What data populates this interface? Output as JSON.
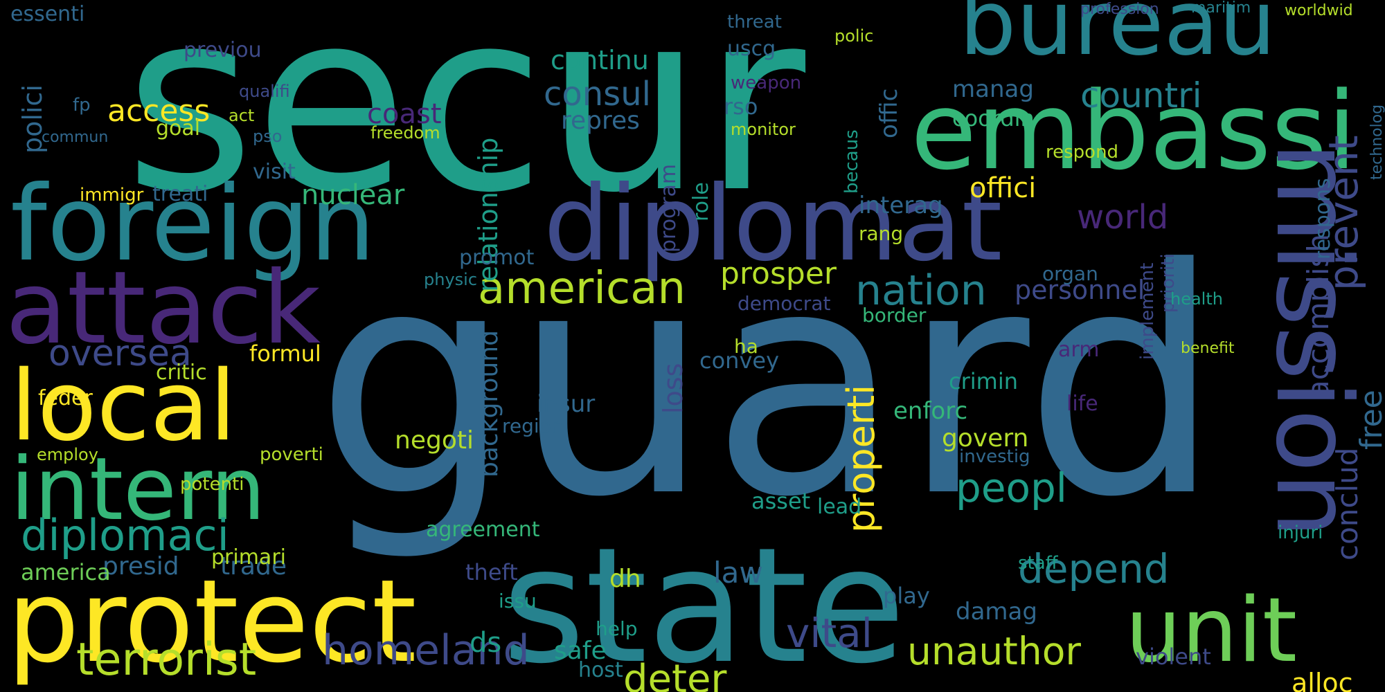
{
  "cloud": {
    "background": "#000000",
    "palette": {
      "purple": "#482878",
      "indigo": "#3e4a89",
      "blue": "#31688e",
      "teal": "#26828e",
      "green": "#1f9e89",
      "mint": "#35b779",
      "lime": "#6ece58",
      "yellowgreen": "#b5de2b",
      "yellow": "#fde725"
    },
    "words": [
      {
        "text": "secur",
        "color": "green"
      },
      {
        "text": "guard",
        "color": "blue"
      },
      {
        "text": "state",
        "color": "teal"
      },
      {
        "text": "bureau",
        "color": "teal"
      },
      {
        "text": "embassi",
        "color": "mint"
      },
      {
        "text": "foreign",
        "color": "teal"
      },
      {
        "text": "diplomat",
        "color": "indigo"
      },
      {
        "text": "mission",
        "color": "indigo"
      },
      {
        "text": "attack",
        "color": "purple"
      },
      {
        "text": "protect",
        "color": "yellow"
      },
      {
        "text": "intern",
        "color": "mint"
      },
      {
        "text": "local",
        "color": "yellow"
      },
      {
        "text": "unit",
        "color": "lime"
      },
      {
        "text": "diplomaci",
        "color": "green"
      },
      {
        "text": "terrorist",
        "color": "yellowgreen"
      },
      {
        "text": "american",
        "color": "yellowgreen"
      },
      {
        "text": "nation",
        "color": "teal"
      },
      {
        "text": "depend",
        "color": "teal"
      },
      {
        "text": "peopl",
        "color": "green"
      },
      {
        "text": "homeland",
        "color": "indigo"
      },
      {
        "text": "vital",
        "color": "indigo"
      },
      {
        "text": "unauthor",
        "color": "yellowgreen"
      },
      {
        "text": "countri",
        "color": "teal"
      },
      {
        "text": "consul",
        "color": "blue"
      },
      {
        "text": "world",
        "color": "purple"
      },
      {
        "text": "oversea",
        "color": "indigo"
      },
      {
        "text": "prosper",
        "color": "yellowgreen"
      },
      {
        "text": "deter",
        "color": "yellowgreen"
      },
      {
        "text": "properti",
        "color": "yellow"
      },
      {
        "text": "prevent",
        "color": "indigo"
      },
      {
        "text": "accomplish",
        "color": "indigo"
      },
      {
        "text": "conclud",
        "color": "indigo"
      },
      {
        "text": "free",
        "color": "blue"
      },
      {
        "text": "access",
        "color": "yellow"
      },
      {
        "text": "nuclear",
        "color": "mint"
      },
      {
        "text": "offici",
        "color": "yellow"
      },
      {
        "text": "coast",
        "color": "purple"
      },
      {
        "text": "repres",
        "color": "blue"
      },
      {
        "text": "continu",
        "color": "green"
      },
      {
        "text": "manag",
        "color": "blue"
      },
      {
        "text": "polici",
        "color": "blue"
      },
      {
        "text": "presid",
        "color": "blue"
      },
      {
        "text": "trade",
        "color": "blue"
      },
      {
        "text": "america",
        "color": "lime"
      },
      {
        "text": "relationship",
        "color": "green"
      },
      {
        "text": "background",
        "color": "blue"
      },
      {
        "text": "personnel",
        "color": "indigo"
      },
      {
        "text": "interag",
        "color": "blue"
      },
      {
        "text": "loss",
        "color": "indigo"
      },
      {
        "text": "negoti",
        "color": "yellowgreen"
      },
      {
        "text": "insur",
        "color": "blue"
      },
      {
        "text": "enforc",
        "color": "mint"
      },
      {
        "text": "govern",
        "color": "yellowgreen"
      },
      {
        "text": "crimin",
        "color": "green"
      },
      {
        "text": "damag",
        "color": "blue"
      },
      {
        "text": "offic",
        "color": "blue"
      },
      {
        "text": "coordin",
        "color": "mint"
      },
      {
        "text": "feder",
        "color": "yellow"
      },
      {
        "text": "formul",
        "color": "yellow"
      },
      {
        "text": "convey",
        "color": "blue"
      },
      {
        "text": "law",
        "color": "blue"
      },
      {
        "text": "safe",
        "color": "green"
      },
      {
        "text": "ds",
        "color": "green"
      },
      {
        "text": "dh",
        "color": "yellowgreen"
      },
      {
        "text": "violent",
        "color": "indigo"
      },
      {
        "text": "alloc",
        "color": "yellow"
      },
      {
        "text": "essenti",
        "color": "blue"
      },
      {
        "text": "previou",
        "color": "indigo"
      },
      {
        "text": "uscg",
        "color": "blue"
      },
      {
        "text": "rso",
        "color": "blue"
      },
      {
        "text": "threat",
        "color": "blue"
      },
      {
        "text": "goal",
        "color": "yellowgreen"
      },
      {
        "text": "visit",
        "color": "blue"
      },
      {
        "text": "treati",
        "color": "blue"
      },
      {
        "text": "immigr",
        "color": "yellow"
      },
      {
        "text": "critic",
        "color": "yellowgreen"
      },
      {
        "text": "primari",
        "color": "yellowgreen"
      },
      {
        "text": "agreement",
        "color": "mint"
      },
      {
        "text": "asset",
        "color": "green"
      },
      {
        "text": "lead",
        "color": "green"
      },
      {
        "text": "injuri",
        "color": "green"
      },
      {
        "text": "play",
        "color": "blue"
      },
      {
        "text": "staff",
        "color": "green"
      },
      {
        "text": "life",
        "color": "purple"
      },
      {
        "text": "arm",
        "color": "purple"
      },
      {
        "text": "organ",
        "color": "blue"
      },
      {
        "text": "democrat",
        "color": "indigo"
      },
      {
        "text": "role",
        "color": "green"
      },
      {
        "text": "program",
        "color": "indigo"
      },
      {
        "text": "promot",
        "color": "blue"
      },
      {
        "text": "physic",
        "color": "teal"
      },
      {
        "text": "potenti",
        "color": "yellowgreen"
      },
      {
        "text": "poverti",
        "color": "yellowgreen"
      },
      {
        "text": "employ",
        "color": "yellowgreen"
      },
      {
        "text": "ha",
        "color": "yellowgreen"
      },
      {
        "text": "theft",
        "color": "indigo"
      },
      {
        "text": "issu",
        "color": "green"
      },
      {
        "text": "host",
        "color": "teal"
      },
      {
        "text": "help",
        "color": "green"
      },
      {
        "text": "region",
        "color": "blue"
      },
      {
        "text": "investig",
        "color": "blue"
      },
      {
        "text": "border",
        "color": "mint"
      },
      {
        "text": "becaus",
        "color": "green"
      },
      {
        "text": "rang",
        "color": "yellowgreen"
      },
      {
        "text": "respond",
        "color": "yellowgreen"
      },
      {
        "text": "freedom",
        "color": "yellowgreen"
      },
      {
        "text": "act",
        "color": "yellowgreen"
      },
      {
        "text": "pso",
        "color": "blue"
      },
      {
        "text": "fp",
        "color": "blue"
      },
      {
        "text": "weapon",
        "color": "purple"
      },
      {
        "text": "monitor",
        "color": "yellowgreen"
      },
      {
        "text": "polic",
        "color": "yellowgreen"
      },
      {
        "text": "commun",
        "color": "blue"
      },
      {
        "text": "qualifi",
        "color": "indigo"
      },
      {
        "text": "implement",
        "color": "indigo"
      },
      {
        "text": "prioriti",
        "color": "indigo"
      },
      {
        "text": "respons",
        "color": "blue"
      },
      {
        "text": "health",
        "color": "green"
      },
      {
        "text": "benefit",
        "color": "yellowgreen"
      },
      {
        "text": "technolog",
        "color": "blue"
      },
      {
        "text": "maritim",
        "color": "teal"
      },
      {
        "text": "worldwid",
        "color": "yellowgreen"
      },
      {
        "text": "profession",
        "color": "indigo"
      }
    ]
  }
}
